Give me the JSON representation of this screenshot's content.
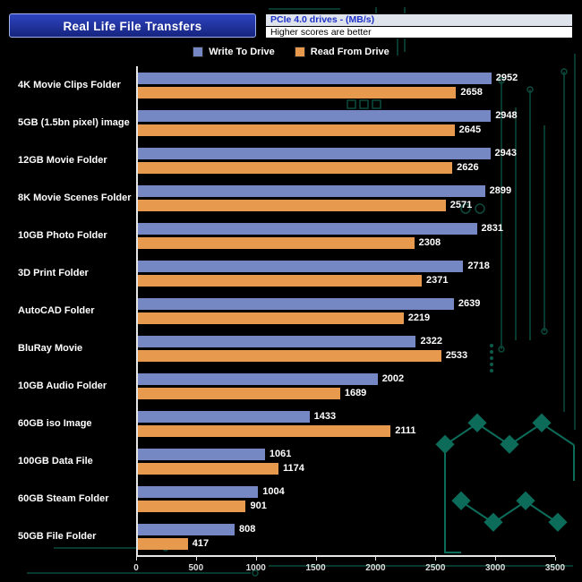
{
  "header": {
    "title": "Real Life File Transfers",
    "subtitle1": "PCIe 4.0 drives - (MB/s)",
    "subtitle2": "Higher scores are better"
  },
  "legend": {
    "write": "Write To  Drive",
    "read": "Read From  Drive"
  },
  "colors": {
    "write_bar": "#7688c4",
    "read_bar": "#e79a4e",
    "title_bg": "#2135ac",
    "subtitle_text": "#1e32c8",
    "axis": "#e6e6e6",
    "circuit_trace": "#0b4a3e",
    "circuit_accent": "#0d6b59"
  },
  "chart_data": {
    "type": "bar",
    "orientation": "horizontal",
    "title": "Real Life File Transfers",
    "subtitle": "PCIe 4.0 drives - (MB/s) — Higher scores are better",
    "categories": [
      "4K Movie Clips Folder",
      "5GB (1.5bn pixel) image",
      "12GB Movie Folder",
      "8K Movie Scenes Folder",
      "10GB Photo Folder",
      "3D Print Folder",
      "AutoCAD Folder",
      "BluRay Movie",
      "10GB Audio Folder",
      "60GB iso Image",
      "100GB Data File",
      "60GB Steam Folder",
      "50GB File Folder"
    ],
    "series": [
      {
        "name": "Write To Drive",
        "key": "write-to-drive",
        "color": "#7688c4",
        "values": [
          2952,
          2948,
          2943,
          2899,
          2831,
          2718,
          2639,
          2322,
          2002,
          1433,
          1061,
          1004,
          808
        ]
      },
      {
        "name": "Read From Drive",
        "key": "read-from-drive",
        "color": "#e79a4e",
        "values": [
          2658,
          2645,
          2626,
          2571,
          2308,
          2371,
          2219,
          2533,
          1689,
          2111,
          1174,
          901,
          417
        ]
      }
    ],
    "xlabel": "",
    "ylabel": "",
    "xlim": [
      0,
      3500
    ],
    "x_ticks": [
      0,
      500,
      1000,
      1500,
      2000,
      2500,
      3000,
      3500
    ],
    "grid": false,
    "legend_position": "top"
  }
}
